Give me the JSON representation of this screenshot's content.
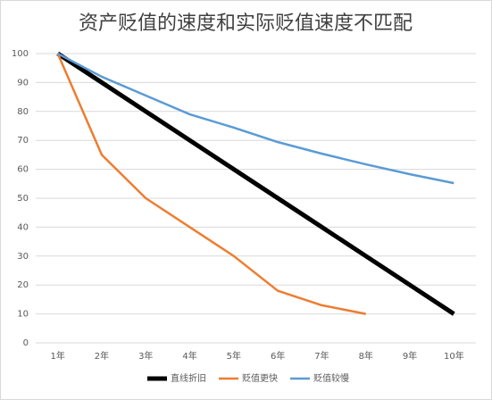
{
  "chart_data": {
    "type": "line",
    "title": "资产贬值的速度和实际贬值速度不匹配",
    "categories": [
      "1年",
      "2年",
      "3年",
      "4年",
      "5年",
      "6年",
      "7年",
      "8年",
      "9年",
      "10年"
    ],
    "series": [
      {
        "name": "直线折旧",
        "color": "#000000",
        "values": [
          100,
          90,
          80,
          70,
          60,
          50,
          40,
          30,
          20,
          10
        ]
      },
      {
        "name": "贬值更快",
        "color": "#ed7d31",
        "values": [
          100,
          65,
          50,
          40,
          30,
          18,
          13,
          10,
          null,
          null
        ]
      },
      {
        "name": "贬值较慢",
        "color": "#5b9bd5",
        "values": [
          100,
          92,
          85.5,
          79,
          74.4,
          69.4,
          65.4,
          61.7,
          58.3,
          55.2
        ]
      }
    ],
    "ylim": [
      0,
      100
    ],
    "yticks": [
      0,
      10,
      20,
      30,
      40,
      50,
      60,
      70,
      80,
      90,
      100
    ],
    "grid": true,
    "legend": "bottom"
  }
}
